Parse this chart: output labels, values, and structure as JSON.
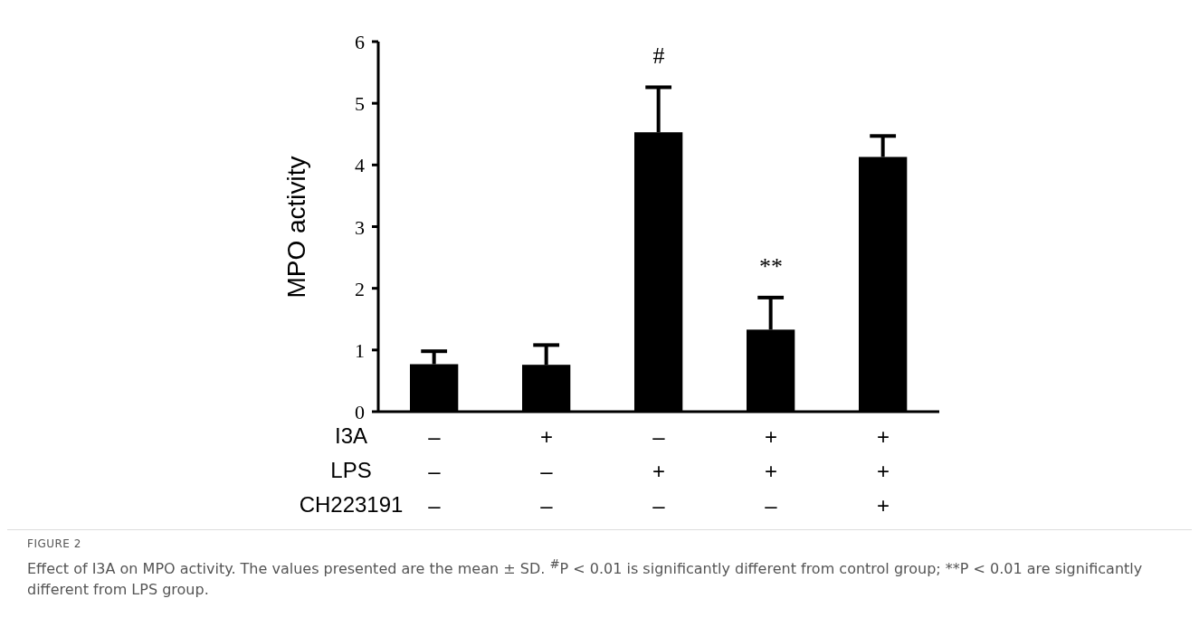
{
  "chart_data": {
    "type": "bar",
    "title": "FIGURE 2",
    "ylabel": "MPO activity",
    "xlabel": "I3A\nLPS\nCH223191",
    "categories": [
      "–\n–\n–",
      "+\n–\n–",
      "–\n+\n–",
      "+\n+\n–",
      "+\n+\n+"
    ],
    "values": [
      0.77,
      0.76,
      4.53,
      1.33,
      4.13
    ],
    "errors": [
      [
        0.77,
        0.98
      ],
      [
        0.76,
        1.08
      ],
      [
        4.53,
        5.26
      ],
      [
        1.33,
        1.85
      ],
      [
        4.13,
        4.47
      ]
    ],
    "value_labels": [
      null,
      null,
      "#",
      "**",
      null
    ],
    "color": "#000000",
    "ylim": [
      0,
      6
    ],
    "yticks": [
      0,
      1,
      2,
      3,
      4,
      5,
      6
    ],
    "grid": false,
    "legend": false,
    "annotations": [
      "Effect of I3A on MPO activity. The values presented are the mean ± SD. $^{#}$P < 0.01 is significantly different from control group; **P < 0.01 are significantly different from LPS group."
    ]
  }
}
